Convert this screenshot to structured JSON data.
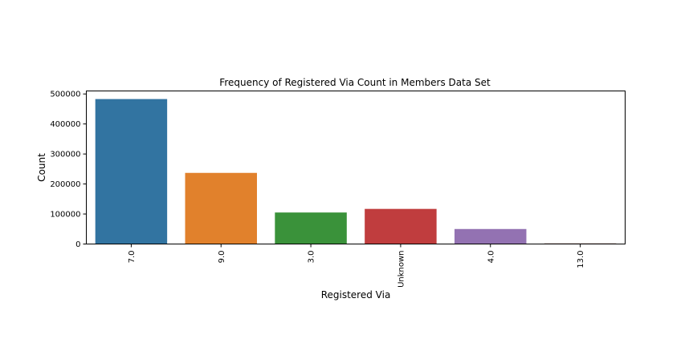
{
  "chart_data": {
    "type": "bar",
    "title": "Frequency of Registered Via Count in Members Data Set",
    "xlabel": "Registered Via",
    "ylabel": "Count",
    "categories": [
      "7.0",
      "9.0",
      "3.0",
      "Unknown",
      "4.0",
      "13.0"
    ],
    "values": [
      483000,
      237000,
      105000,
      117000,
      50000,
      1500
    ],
    "colors": [
      "#3274a1",
      "#e1812c",
      "#3a923a",
      "#c03d3e",
      "#9372b2",
      "#845b53"
    ],
    "ylim": [
      0,
      510000
    ],
    "yticks": [
      0,
      100000,
      200000,
      300000,
      400000,
      500000
    ],
    "ytick_labels": [
      "0",
      "100000",
      "200000",
      "300000",
      "400000",
      "500000"
    ],
    "grid": false,
    "legend": "none"
  }
}
